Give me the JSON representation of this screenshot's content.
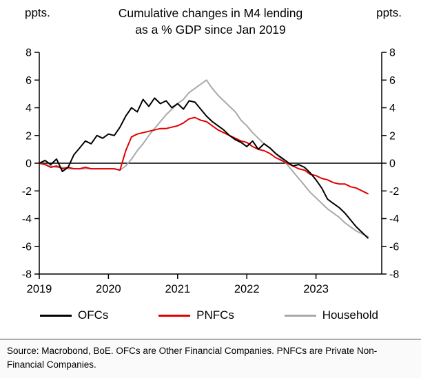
{
  "header": {
    "unit_left": "ppts.",
    "unit_right": "ppts.",
    "title_line1": "Cumulative changes in M4 lending",
    "title_line2": "as a % GDP since Jan 2019"
  },
  "footer": {
    "source": "Source: Macrobond, BoE. OFCs are Other Financial Companies. PNFCs are Private Non-Financial Companies."
  },
  "chart_data": {
    "type": "line",
    "title": "Cumulative changes in M4 lending as a % GDP since Jan 2019",
    "xlabel": "",
    "ylabel": "ppts.",
    "xlim": [
      2019,
      2023.95
    ],
    "ylim": [
      -8,
      8
    ],
    "yticks": [
      8,
      6,
      4,
      2,
      0,
      -2,
      -4,
      -6,
      -8
    ],
    "xticks": [
      2019,
      2020,
      2021,
      2022,
      2023
    ],
    "start_year": 2019,
    "frequency": "monthly",
    "grid": false,
    "legend_position": "bottom",
    "series": [
      {
        "name": "OFCs",
        "color": "#000000",
        "values": [
          0.0,
          0.2,
          -0.1,
          0.3,
          -0.6,
          -0.3,
          0.6,
          1.1,
          1.6,
          1.4,
          2.0,
          1.8,
          2.1,
          2.0,
          2.6,
          3.4,
          4.0,
          3.7,
          4.6,
          4.1,
          4.7,
          4.3,
          4.5,
          4.0,
          4.3,
          3.9,
          4.5,
          4.4,
          3.9,
          3.4,
          3.0,
          2.7,
          2.4,
          2.0,
          1.7,
          1.5,
          1.2,
          1.6,
          1.0,
          1.4,
          1.1,
          0.7,
          0.4,
          0.1,
          -0.2,
          -0.1,
          -0.3,
          -0.7,
          -1.2,
          -1.8,
          -2.6,
          -2.9,
          -3.2,
          -3.6,
          -4.1,
          -4.6,
          -5.0,
          -5.4
        ]
      },
      {
        "name": "PNFCs",
        "color": "#e10000",
        "values": [
          0.0,
          -0.1,
          -0.3,
          -0.2,
          -0.4,
          -0.3,
          -0.4,
          -0.4,
          -0.3,
          -0.4,
          -0.4,
          -0.4,
          -0.4,
          -0.4,
          -0.5,
          0.9,
          1.9,
          2.1,
          2.2,
          2.3,
          2.4,
          2.5,
          2.5,
          2.6,
          2.7,
          2.9,
          3.2,
          3.3,
          3.1,
          3.0,
          2.7,
          2.4,
          2.2,
          2.0,
          1.8,
          1.6,
          1.5,
          1.2,
          1.0,
          0.9,
          0.7,
          0.4,
          0.2,
          0.0,
          -0.2,
          -0.4,
          -0.5,
          -0.8,
          -0.9,
          -1.1,
          -1.2,
          -1.4,
          -1.5,
          -1.5,
          -1.7,
          -1.8,
          -2.0,
          -2.2
        ]
      },
      {
        "name": "Household",
        "color": "#a9a9a9",
        "values": [
          0.0,
          -0.1,
          -0.2,
          -0.3,
          -0.3,
          -0.4,
          -0.4,
          -0.4,
          -0.4,
          -0.4,
          -0.4,
          -0.4,
          -0.4,
          -0.4,
          -0.5,
          -0.2,
          0.3,
          0.9,
          1.4,
          2.0,
          2.5,
          3.0,
          3.5,
          3.9,
          4.3,
          4.6,
          5.1,
          5.4,
          5.7,
          6.0,
          5.4,
          4.9,
          4.5,
          4.1,
          3.7,
          3.1,
          2.7,
          2.2,
          1.8,
          1.4,
          1.1,
          0.7,
          0.3,
          -0.1,
          -0.6,
          -1.1,
          -1.6,
          -2.1,
          -2.5,
          -2.9,
          -3.3,
          -3.6,
          -3.9,
          -4.3,
          -4.6,
          -4.9,
          -5.1,
          -5.3
        ]
      }
    ]
  }
}
